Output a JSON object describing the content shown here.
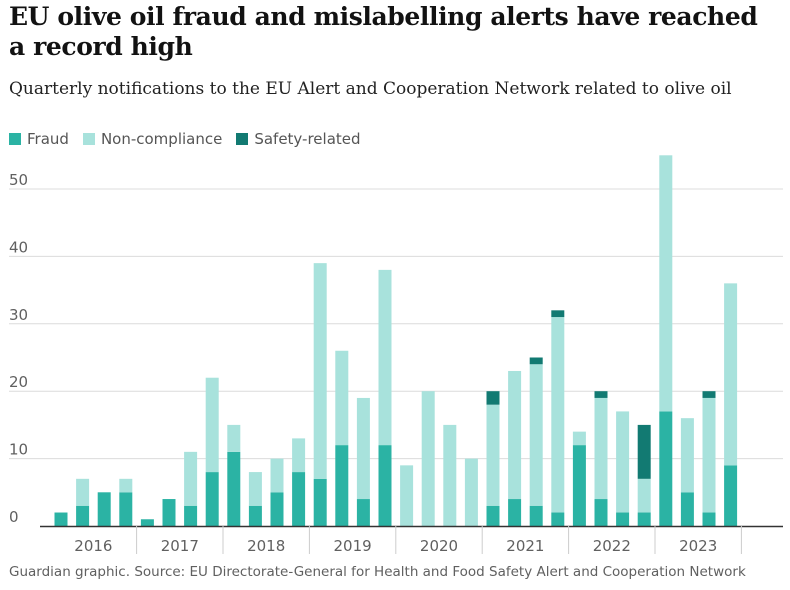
{
  "chart_data": {
    "type": "bar",
    "stacked": true,
    "title": "EU olive oil fraud and mislabelling alerts have reached a record high",
    "subtitle": "Quarterly notifications to the EU Alert and Cooperation Network related to olive oil",
    "source": "Guardian graphic. Source: EU Directorate-General for Health and Food Safety Alert and Cooperation Network",
    "legend_position": "top-left",
    "grid": true,
    "ylim": [
      0,
      50
    ],
    "yticks": [
      "50",
      "40",
      "30",
      "20",
      "10",
      "0"
    ],
    "year_labels": [
      "2016",
      "2017",
      "2018",
      "2019",
      "2020",
      "2021",
      "2022",
      "2023"
    ],
    "categories": [
      "2016 Q1",
      "2016 Q2",
      "2016 Q3",
      "2016 Q4",
      "2017 Q1",
      "2017 Q2",
      "2017 Q3",
      "2017 Q4",
      "2018 Q1",
      "2018 Q2",
      "2018 Q3",
      "2018 Q4",
      "2019 Q1",
      "2019 Q2",
      "2019 Q3",
      "2019 Q4",
      "2020 Q1",
      "2020 Q2",
      "2020 Q3",
      "2020 Q4",
      "2021 Q1",
      "2021 Q2",
      "2021 Q3",
      "2021 Q4",
      "2022 Q1",
      "2022 Q2",
      "2022 Q3",
      "2022 Q4",
      "2023 Q1",
      "2023 Q2",
      "2023 Q3",
      "2023 Q4"
    ],
    "series": [
      {
        "name": "Fraud",
        "color": "#2bb3a4",
        "values": [
          2,
          3,
          5,
          5,
          1,
          4,
          3,
          8,
          11,
          3,
          5,
          8,
          7,
          12,
          4,
          12,
          0,
          0,
          0,
          0,
          3,
          4,
          3,
          2,
          12,
          4,
          2,
          2,
          17,
          5,
          2,
          9
        ]
      },
      {
        "name": "Non-compliance",
        "color": "#a8e2dc",
        "values": [
          0,
          4,
          0,
          2,
          0,
          0,
          8,
          14,
          4,
          5,
          5,
          5,
          32,
          14,
          15,
          26,
          9,
          20,
          15,
          10,
          15,
          19,
          21,
          29,
          2,
          15,
          15,
          5,
          38,
          11,
          17,
          27
        ]
      },
      {
        "name": "Safety-related",
        "color": "#127a72",
        "values": [
          0,
          0,
          0,
          0,
          0,
          0,
          0,
          0,
          0,
          0,
          0,
          0,
          0,
          0,
          0,
          0,
          0,
          0,
          0,
          0,
          2,
          0,
          1,
          1,
          0,
          1,
          0,
          8,
          0,
          0,
          1,
          0
        ]
      }
    ]
  }
}
